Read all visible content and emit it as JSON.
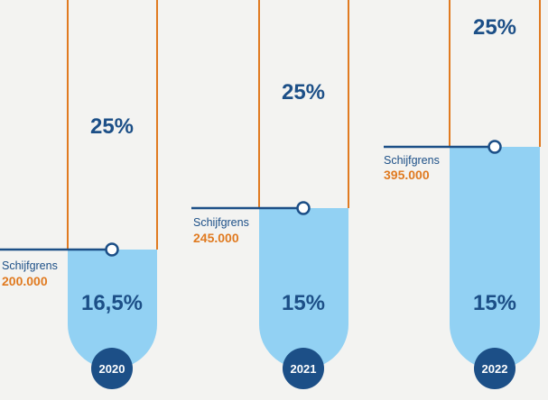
{
  "chart_data": {
    "type": "bar",
    "categories": [
      "2020",
      "2021",
      "2022"
    ],
    "items": [
      {
        "year": "2020",
        "threshold_label": "Schijfgrens",
        "threshold": "200.000",
        "threshold_value": 200000,
        "lower_rate": "16,5%",
        "upper_rate": "25%"
      },
      {
        "year": "2021",
        "threshold_label": "Schijfgrens",
        "threshold": "245.000",
        "threshold_value": 245000,
        "lower_rate": "15%",
        "upper_rate": "25%"
      },
      {
        "year": "2022",
        "threshold_label": "Schijfgrens",
        "threshold": "395.000",
        "threshold_value": 395000,
        "lower_rate": "15%",
        "upper_rate": "25%"
      }
    ]
  },
  "colors": {
    "background": "#f3f3f1",
    "fill": "#92d1f3",
    "outline": "#e07a20",
    "navy": "#1c4f87",
    "threshold_text": "#e07a20"
  }
}
